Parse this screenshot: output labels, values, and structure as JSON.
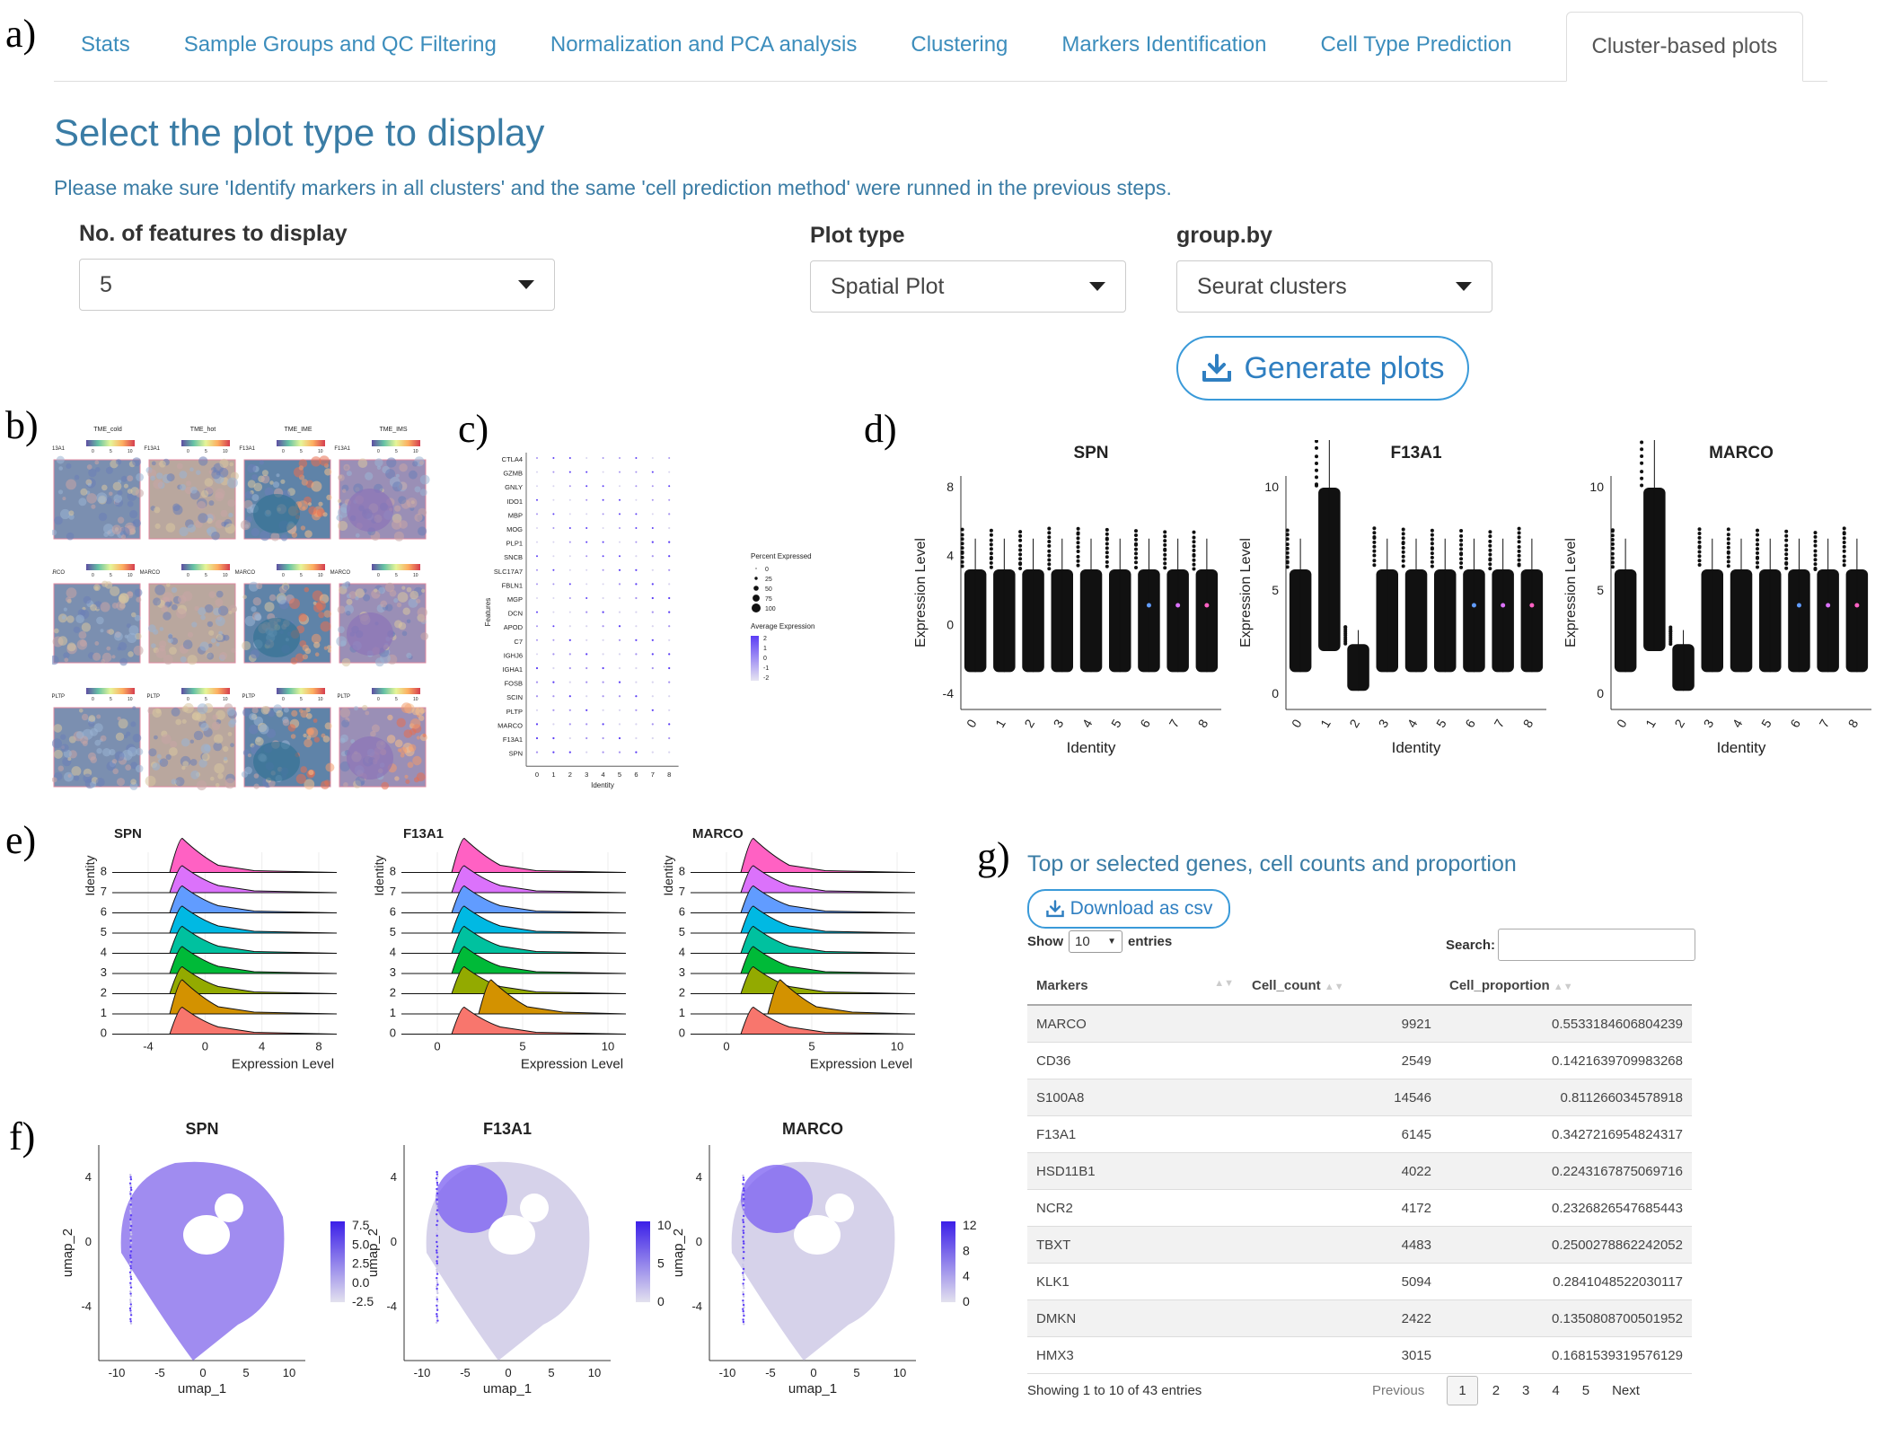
{
  "panel_letters": {
    "a": "a)",
    "b": "b)",
    "c": "c)",
    "d": "d)",
    "e": "e)",
    "f": "f)",
    "g": "g)"
  },
  "tabs": [
    {
      "label": "Stats",
      "active": false
    },
    {
      "label": "Sample Groups and QC Filtering",
      "active": false
    },
    {
      "label": "Normalization and PCA analysis",
      "active": false
    },
    {
      "label": "Clustering",
      "active": false
    },
    {
      "label": "Markers Identification",
      "active": false
    },
    {
      "label": "Cell Type Prediction",
      "active": false
    },
    {
      "label": "Cluster-based plots",
      "active": true
    }
  ],
  "main": {
    "heading": "Select the plot type to display",
    "note": "Please make sure 'Identify markers in all clusters' and the same 'cell prediction method' were runned in the previous steps.",
    "features_label": "No. of features to display",
    "features_value": "5",
    "plot_type_label": "Plot type",
    "plot_type_value": "Spatial Plot",
    "groupby_label": "group.by",
    "groupby_value": "Seurat clusters",
    "generate_label": "Generate plots"
  },
  "colors": {
    "accent": "#3a7ca5",
    "link": "#3c8dbc",
    "purple": "#5b3df5",
    "light": "#d8d6e6"
  },
  "spatial": {
    "titles": [
      "TME_cold",
      "TME_hot",
      "TME_IME",
      "TME_IMS"
    ],
    "genes": [
      "F13A1",
      "MARCO",
      "PLTP"
    ],
    "scale_ticks": [
      "0",
      "5",
      "10"
    ]
  },
  "dotplot": {
    "features": [
      "CTLA4",
      "GZMB",
      "GNLY",
      "IDO1",
      "MBP",
      "MOG",
      "PLP1",
      "SNCB",
      "SLC17A7",
      "FBLN1",
      "MGP",
      "DCN",
      "APOD",
      "C7",
      "IGHJ6",
      "IGHA1",
      "FOSB",
      "SCIN",
      "PLTP",
      "MARCO",
      "F13A1",
      "SPN"
    ],
    "identities": [
      "0",
      "1",
      "2",
      "3",
      "4",
      "5",
      "6",
      "7",
      "8"
    ],
    "xlabel": "Identity",
    "ylabel": "Features",
    "pct_title": "Percent Expressed",
    "pct_levels": [
      "0",
      "25",
      "50",
      "75",
      "100"
    ],
    "avg_title": "Average Expression",
    "avg_levels": [
      "2",
      "1",
      "0",
      "-1",
      "-2"
    ]
  },
  "violin": {
    "xlabel": "Identity",
    "ylabel": "Expression Level",
    "identities": [
      "0",
      "1",
      "2",
      "3",
      "4",
      "5",
      "6",
      "7",
      "8"
    ],
    "panels": [
      {
        "title": "SPN",
        "yticks": [
          "8",
          "4",
          "0",
          "-4"
        ]
      },
      {
        "title": "F13A1",
        "yticks": [
          "10",
          "5",
          "0"
        ]
      },
      {
        "title": "MARCO",
        "yticks": [
          "10",
          "5",
          "0"
        ]
      }
    ]
  },
  "ridge": {
    "ylabel": "Identity",
    "xlabel": "Expression Level",
    "identities": [
      "0",
      "1",
      "2",
      "3",
      "4",
      "5",
      "6",
      "7",
      "8"
    ],
    "panels": [
      {
        "title": "SPN",
        "xticks": [
          "-4",
          "0",
          "4",
          "8"
        ]
      },
      {
        "title": "F13A1",
        "xticks": [
          "0",
          "5",
          "10"
        ]
      },
      {
        "title": "MARCO",
        "xticks": [
          "0",
          "5",
          "10"
        ]
      }
    ]
  },
  "umap": {
    "xlabel": "umap_1",
    "ylabel": "umap_2",
    "xticks": [
      "-10",
      "-5",
      "0",
      "5",
      "10"
    ],
    "yticks": [
      "4",
      "0",
      "-4"
    ],
    "panels": [
      {
        "title": "SPN",
        "legend": [
          "7.5",
          "5.0",
          "2.5",
          "0.0",
          "-2.5"
        ]
      },
      {
        "title": "F13A1",
        "legend": [
          "10",
          "5",
          "0"
        ]
      },
      {
        "title": "MARCO",
        "legend": [
          "12",
          "8",
          "4",
          "0"
        ]
      }
    ]
  },
  "table": {
    "title": "Top or selected genes, cell counts and proportion",
    "download_label": "Download as csv",
    "show_label": "Show",
    "entries_value": "10",
    "entries_label": "entries",
    "search_label": "Search:",
    "columns": [
      "Markers",
      "Cell_count",
      "Cell_proportion"
    ],
    "rows": [
      [
        "MARCO",
        "9921",
        "0.5533184606804239"
      ],
      [
        "CD36",
        "2549",
        "0.1421639709983268"
      ],
      [
        "S100A8",
        "14546",
        "0.811266034578918"
      ],
      [
        "F13A1",
        "6145",
        "0.3427216954824317"
      ],
      [
        "HSD11B1",
        "4022",
        "0.2243167875069716"
      ],
      [
        "NCR2",
        "4172",
        "0.2326826547685443"
      ],
      [
        "TBXT",
        "4483",
        "0.2500278862242052"
      ],
      [
        "KLK1",
        "5094",
        "0.2841048522030117"
      ],
      [
        "DMKN",
        "2422",
        "0.1350808700501952"
      ],
      [
        "HMX3",
        "3015",
        "0.1681539319576129"
      ]
    ],
    "info": "Showing 1 to 10 of 43 entries",
    "pager": [
      "Previous",
      "1",
      "2",
      "3",
      "4",
      "5",
      "Next"
    ]
  }
}
